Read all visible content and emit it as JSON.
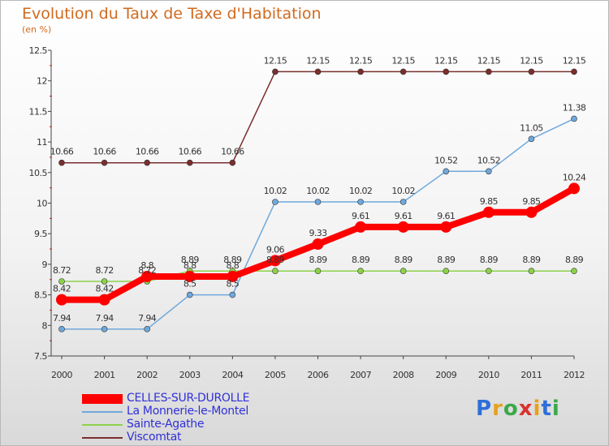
{
  "chart_data": {
    "type": "line",
    "title": "Evolution du Taux de Taxe d'Habitation",
    "unit": "(en %)",
    "categories": [
      "2000",
      "2001",
      "2002",
      "2003",
      "2004",
      "2005",
      "2006",
      "2007",
      "2008",
      "2009",
      "2010",
      "2011",
      "2012"
    ],
    "ylim": [
      7.5,
      12.5
    ],
    "yticks": [
      "7.5",
      "8",
      "8.5",
      "9",
      "9.5",
      "10",
      "10.5",
      "11",
      "11.5",
      "12",
      "12.5"
    ],
    "grid": false,
    "legend_position": "bottom-left",
    "series": [
      {
        "name": "CELLES-SUR-DUROLLE",
        "color": "#ff0000",
        "values": [
          8.42,
          8.42,
          8.8,
          8.8,
          8.8,
          9.06,
          9.33,
          9.61,
          9.61,
          9.61,
          9.85,
          9.85,
          10.24
        ],
        "labels": [
          "8.42",
          "8.42",
          "8.8",
          "8.8",
          "8.8",
          "9.06",
          "9.33",
          "9.61",
          "9.61",
          "9.61",
          "9.85",
          "9.85",
          "10.24"
        ]
      },
      {
        "name": "La Monnerie-le-Montel",
        "color": "#6fa8dc",
        "values": [
          7.94,
          7.94,
          7.94,
          8.5,
          8.5,
          10.02,
          10.02,
          10.02,
          10.02,
          10.52,
          10.52,
          11.05,
          11.38
        ],
        "labels": [
          "7.94",
          "7.94",
          "7.94",
          "8.5",
          "8.5",
          "10.02",
          "10.02",
          "10.02",
          "10.02",
          "10.52",
          "10.52",
          "11.05",
          "11.38"
        ]
      },
      {
        "name": "Sainte-Agathe",
        "color": "#8cd24a",
        "values": [
          8.72,
          8.72,
          8.72,
          8.89,
          8.89,
          8.89,
          8.89,
          8.89,
          8.89,
          8.89,
          8.89,
          8.89,
          8.89
        ],
        "labels": [
          "8.72",
          "8.72",
          "8.72",
          "8.89",
          "8.89",
          "8.89",
          "8.89",
          "8.89",
          "8.89",
          "8.89",
          "8.89",
          "8.89",
          "8.89"
        ]
      },
      {
        "name": "Viscomtat",
        "color": "#7a2e2e",
        "values": [
          10.66,
          10.66,
          10.66,
          10.66,
          10.66,
          12.15,
          12.15,
          12.15,
          12.15,
          12.15,
          12.15,
          12.15,
          12.15
        ],
        "labels": [
          "10.66",
          "10.66",
          "10.66",
          "10.66",
          "10.66",
          "12.15",
          "12.15",
          "12.15",
          "12.15",
          "12.15",
          "12.15",
          "12.15",
          "12.15"
        ]
      }
    ]
  },
  "brand": {
    "letters": [
      "P",
      "r",
      "o",
      "x",
      "i",
      "t",
      "i"
    ],
    "colors": [
      "#2e6fd8",
      "#e6a21e",
      "#3aa84a",
      "#d8322e",
      "#e6a21e",
      "#2e6fd8",
      "#3aa84a"
    ]
  }
}
